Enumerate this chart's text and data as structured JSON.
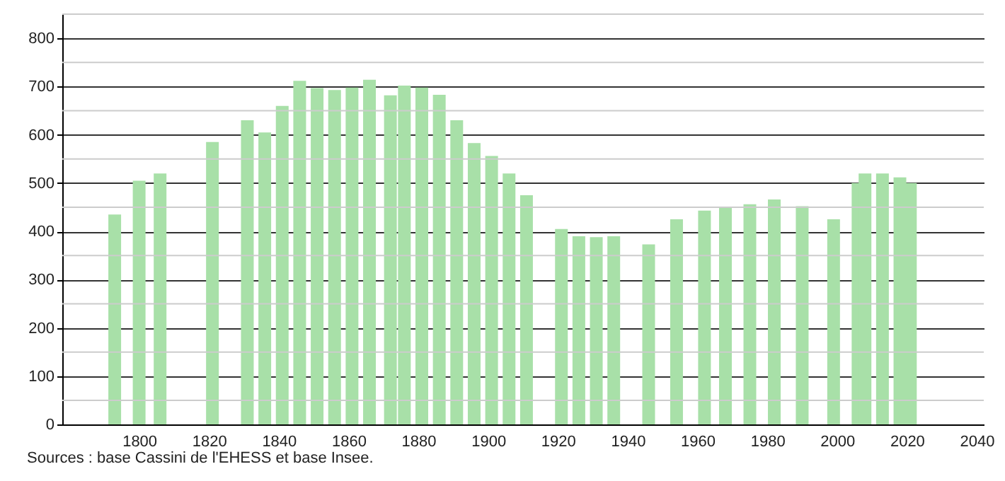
{
  "chart_data": {
    "type": "bar",
    "color": "#a8e0a8",
    "x": [
      1793,
      1800,
      1806,
      1821,
      1831,
      1836,
      1841,
      1846,
      1851,
      1856,
      1861,
      1866,
      1872,
      1876,
      1881,
      1886,
      1891,
      1896,
      1901,
      1906,
      1911,
      1921,
      1926,
      1931,
      1936,
      1946,
      1954,
      1962,
      1968,
      1975,
      1982,
      1990,
      1999,
      2006,
      2008,
      2013,
      2018,
      2021
    ],
    "values": [
      435,
      505,
      520,
      585,
      630,
      605,
      660,
      712,
      697,
      693,
      698,
      714,
      682,
      702,
      698,
      683,
      630,
      583,
      556,
      520,
      475,
      405,
      390,
      388,
      390,
      373,
      425,
      443,
      450,
      456,
      466,
      452,
      425,
      500,
      520,
      520,
      512,
      500
    ],
    "xlim": [
      1780,
      2040
    ],
    "xticks": [
      1800,
      1820,
      1840,
      1860,
      1880,
      1900,
      1920,
      1940,
      1960,
      1980,
      2000,
      2020,
      2040
    ],
    "ylim": [
      0,
      850
    ],
    "yticks": [
      0,
      {
        "value": 50,
        "label": null
      },
      100,
      {
        "value": 150,
        "label": null
      },
      200,
      {
        "value": 250,
        "label": null
      },
      300,
      {
        "value": 350,
        "label": null
      },
      400,
      {
        "value": 450,
        "label": null
      },
      500,
      {
        "value": 550,
        "label": null
      },
      600,
      {
        "value": 650,
        "label": null
      },
      700,
      {
        "value": 750,
        "label": null
      },
      800,
      {
        "value": 850,
        "label": null
      }
    ],
    "grid": "y",
    "annotations": [
      "Sources : base Cassini de l'EHESS et base Insee."
    ]
  }
}
